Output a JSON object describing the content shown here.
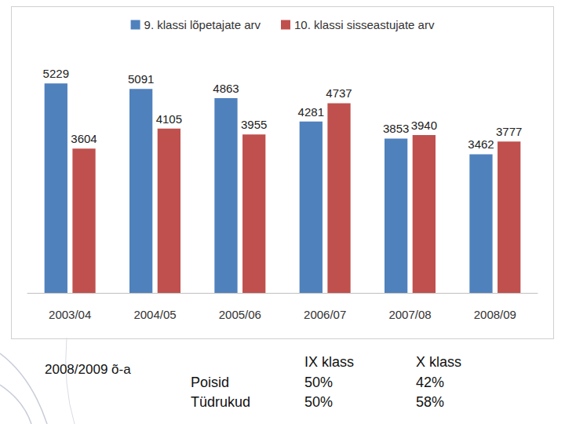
{
  "chart_data": {
    "type": "bar",
    "categories": [
      "2003/04",
      "2004/05",
      "2005/06",
      "2006/07",
      "2007/08",
      "2008/09"
    ],
    "series": [
      {
        "name": "9. klassi lõpetajate arv",
        "color": "#4f81bd",
        "values": [
          5229,
          5091,
          4863,
          4281,
          3853,
          3462
        ]
      },
      {
        "name": "10. klassi sisseastujate arv",
        "color": "#c0504d",
        "values": [
          3604,
          4105,
          3955,
          4737,
          3940,
          3777
        ]
      }
    ],
    "ylim": [
      0,
      6000
    ],
    "yticks": [
      0,
      6000
    ],
    "grid": false,
    "legend": "top",
    "data_labels": true,
    "tick_labels": "x"
  },
  "table": {
    "title": "2008/2009 õ-a",
    "row_labels": [
      "Poisid",
      "Tüdrukud"
    ],
    "columns": [
      {
        "header": "IX klass",
        "values": [
          "50%",
          "50%"
        ]
      },
      {
        "header": "X klass",
        "values": [
          "42%",
          "58%"
        ]
      }
    ]
  }
}
